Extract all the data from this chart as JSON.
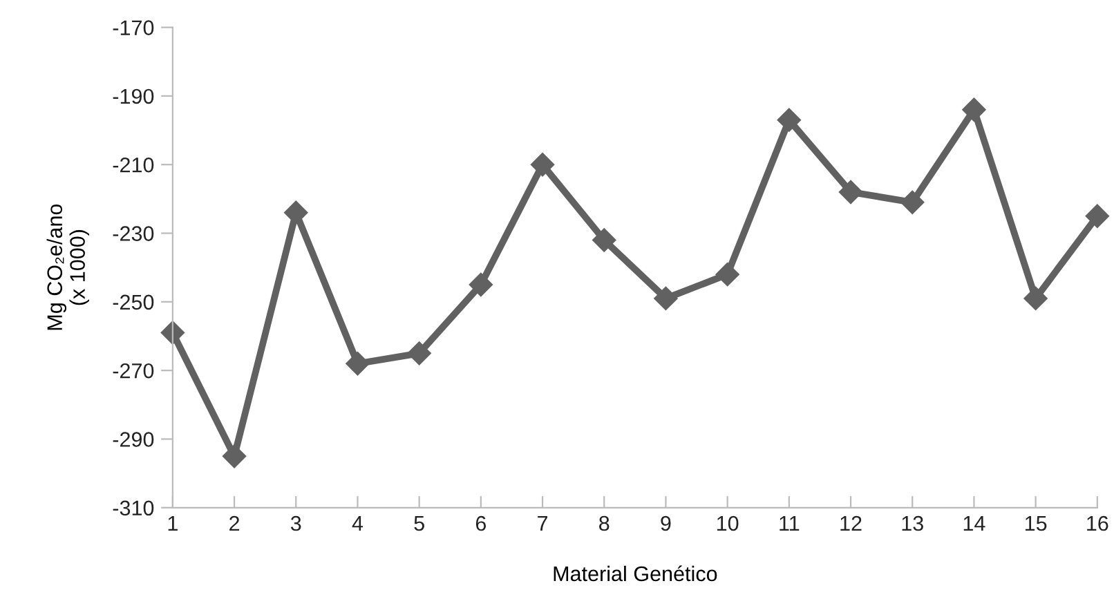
{
  "chart_data": {
    "type": "line",
    "xlabel": "Material Genético",
    "ylabel": "Mg CO₂e/ano\n(x 1000)",
    "x": [
      1,
      2,
      3,
      4,
      5,
      6,
      7,
      8,
      9,
      10,
      11,
      12,
      13,
      14,
      15,
      16
    ],
    "series": [
      {
        "color": "#616161",
        "values": [
          -259,
          -295,
          -224,
          -268,
          -265,
          -245,
          -210,
          -232,
          -249,
          -242,
          -197,
          -218,
          -221,
          -194,
          -249,
          -225
        ]
      }
    ],
    "xlim": [
      1,
      16
    ],
    "xticks": [
      1,
      2,
      3,
      4,
      5,
      6,
      7,
      8,
      9,
      10,
      11,
      12,
      13,
      14,
      15,
      16
    ],
    "ylim": [
      -310,
      -170
    ],
    "yticks": [
      -310,
      -290,
      -270,
      -250,
      -230,
      -210,
      -190,
      -170
    ],
    "grid": false,
    "marker": "diamond",
    "line_style": "solid"
  }
}
